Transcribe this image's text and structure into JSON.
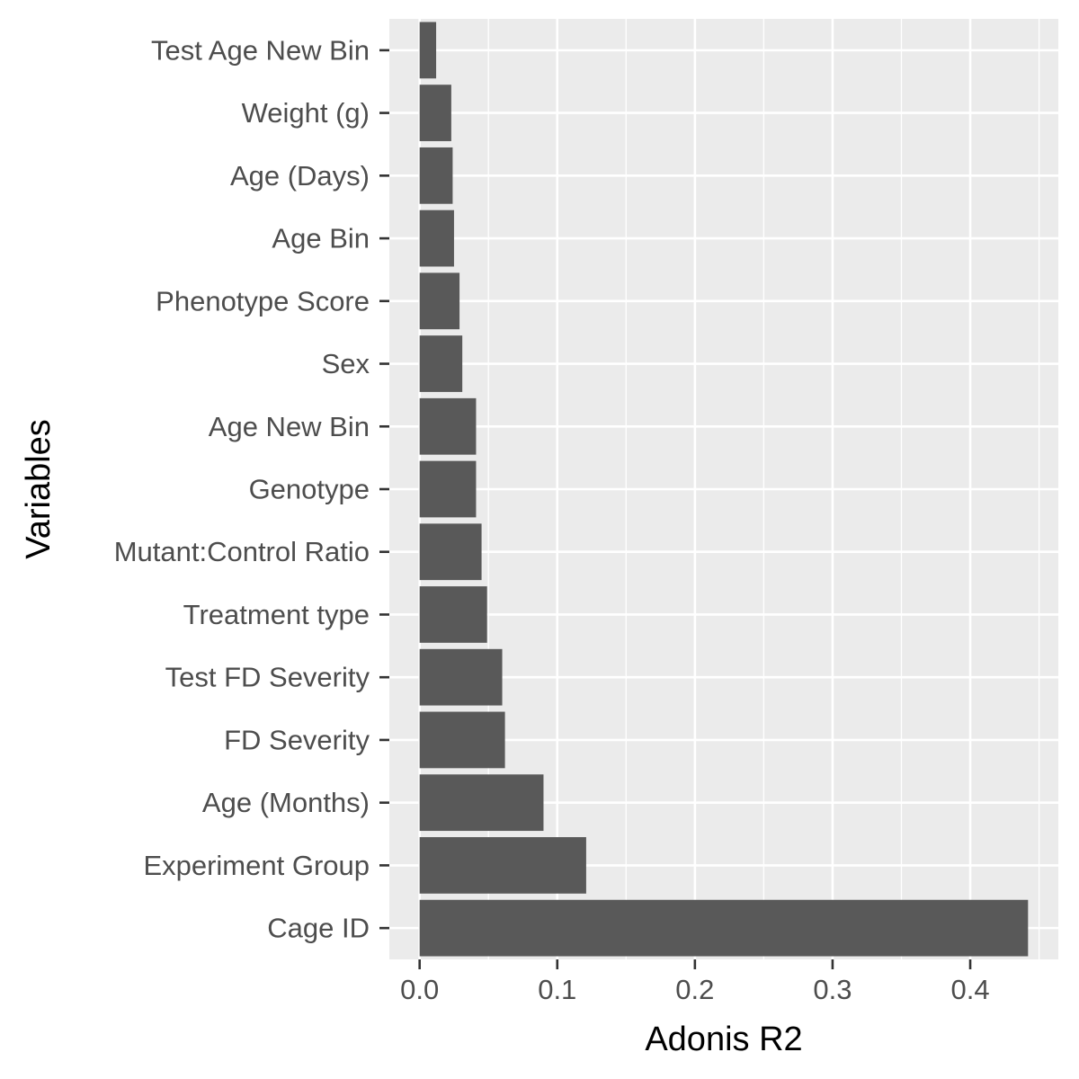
{
  "chart_data": {
    "type": "bar",
    "orientation": "horizontal",
    "categories": [
      "Test Age New Bin",
      "Weight (g)",
      "Age (Days)",
      "Age Bin",
      "Phenotype Score",
      "Sex",
      "Age New Bin",
      "Genotype",
      "Mutant:Control Ratio",
      "Treatment type",
      "Test FD Severity",
      "FD Severity",
      "Age (Months)",
      "Experiment Group",
      "Cage ID"
    ],
    "values": [
      0.012,
      0.023,
      0.024,
      0.025,
      0.029,
      0.031,
      0.041,
      0.041,
      0.045,
      0.049,
      0.06,
      0.062,
      0.09,
      0.121,
      0.442
    ],
    "title": "",
    "xlabel": "Adonis R2",
    "ylabel": "Variables",
    "xlim": [
      -0.022,
      0.464
    ],
    "xticks": [
      "0.0",
      "0.1",
      "0.2",
      "0.3",
      "0.4"
    ],
    "xtick_values": [
      0,
      0.1,
      0.2,
      0.3,
      0.4
    ],
    "grid": true,
    "legend": "none",
    "colors": {
      "bar": "#595959",
      "panel": "#ebebeb",
      "grid": "#ffffff",
      "tick": "#333333"
    }
  }
}
